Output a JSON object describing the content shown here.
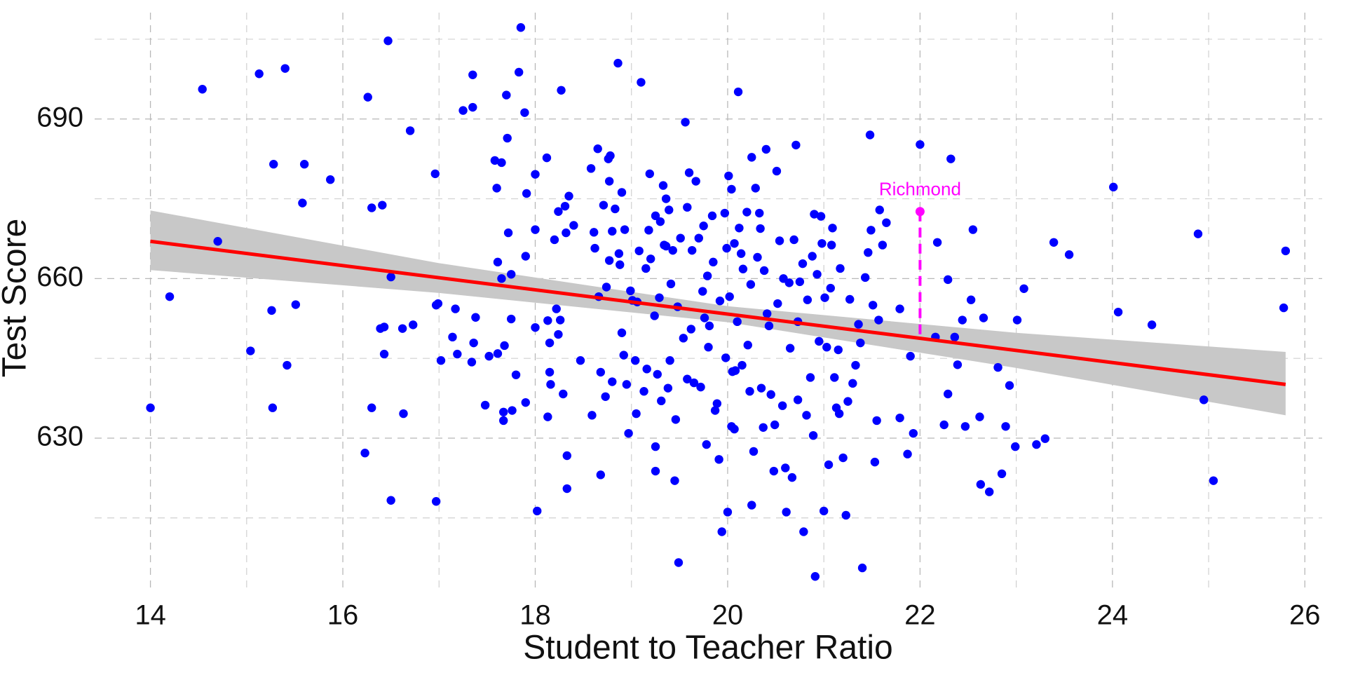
{
  "chart_data": {
    "type": "scatter",
    "x_label": "Student to Teacher Ratio",
    "y_label": "Test Score",
    "color": "#0000ff",
    "xlim": [
      13.42,
      26.18
    ],
    "ylim": [
      601,
      710
    ],
    "xticks": [
      14,
      16,
      18,
      20,
      22,
      24,
      26
    ],
    "yticks": [
      630,
      660,
      690
    ],
    "x_minor_ticks": [
      15,
      17,
      19,
      21,
      23,
      25
    ],
    "y_minor_ticks": [
      615,
      645,
      675,
      705
    ],
    "grid": true,
    "fit": {
      "color": "#ff0000",
      "x": [
        14,
        25.8
      ],
      "y": [
        667.0,
        640.1
      ]
    },
    "band": {
      "color": "#c8c8c8",
      "x": [
        14,
        17,
        20,
        23,
        25.8
      ],
      "lower": [
        661.6,
        657.3,
        651.8,
        643.2,
        634.3
      ],
      "upper": [
        672.8,
        662.9,
        654.8,
        649.8,
        646.2
      ]
    },
    "annotation": {
      "label": "Richmond",
      "color": "#ff00ff",
      "x": 22,
      "y": 672.6,
      "fitted": 648.7
    },
    "x": [
      14.0,
      14.2,
      14.54,
      14.7,
      15.13,
      15.4,
      15.04,
      15.27,
      15.28,
      15.26,
      15.42,
      15.51,
      15.58,
      15.6,
      15.87,
      16.23,
      16.26,
      16.3,
      16.3,
      16.41,
      16.39,
      16.43,
      16.43,
      16.47,
      16.5,
      16.5,
      16.62,
      16.63,
      16.7,
      16.73,
      16.96,
      16.97,
      16.97,
      16.99,
      17.02,
      17.14,
      17.17,
      17.19,
      17.25,
      17.35,
      17.35,
      17.38,
      17.36,
      17.34,
      17.48,
      17.52,
      17.58,
      17.61,
      17.6,
      17.61,
      17.65,
      17.65,
      17.67,
      17.67,
      17.68,
      17.7,
      17.71,
      17.72,
      17.75,
      17.75,
      17.76,
      17.8,
      17.83,
      17.85,
      17.89,
      17.91,
      17.9,
      17.9,
      18.0,
      18.0,
      18.02,
      18.0,
      18.12,
      18.13,
      18.13,
      18.15,
      18.15,
      18.16,
      18.2,
      18.24,
      18.22,
      18.24,
      18.27,
      18.26,
      18.29,
      18.32,
      18.31,
      18.33,
      18.33,
      18.35,
      18.4,
      18.47,
      18.58,
      18.59,
      18.61,
      18.62,
      18.65,
      18.66,
      18.68,
      18.68,
      18.71,
      18.73,
      18.74,
      18.76,
      18.77,
      18.77,
      18.78,
      18.8,
      18.8,
      18.83,
      18.86,
      18.87,
      18.88,
      18.9,
      18.9,
      18.92,
      18.93,
      18.95,
      18.97,
      18.99,
      19.01,
      19.04,
      19.05,
      19.06,
      19.08,
      19.1,
      19.13,
      19.15,
      19.16,
      19.18,
      19.19,
      19.2,
      19.24,
      19.25,
      19.25,
      19.25,
      19.27,
      19.29,
      19.3,
      19.31,
      19.33,
      19.34,
      19.36,
      19.36,
      19.38,
      19.39,
      19.4,
      19.41,
      19.43,
      19.45,
      19.46,
      19.48,
      19.49,
      19.51,
      19.54,
      19.56,
      19.58,
      19.58,
      19.6,
      19.62,
      19.63,
      19.65,
      19.67,
      19.7,
      19.72,
      19.74,
      19.75,
      19.76,
      19.78,
      19.79,
      19.8,
      19.81,
      19.84,
      19.85,
      19.87,
      19.89,
      19.91,
      19.92,
      19.94,
      19.97,
      19.98,
      19.99,
      20.0,
      20.01,
      20.02,
      20.04,
      20.04,
      20.05,
      20.07,
      20.07,
      20.08,
      20.1,
      20.11,
      20.12,
      20.14,
      20.15,
      20.16,
      20.2,
      20.21,
      20.23,
      20.24,
      20.25,
      20.25,
      20.27,
      20.29,
      20.31,
      20.33,
      20.34,
      20.35,
      20.37,
      20.38,
      20.4,
      20.41,
      20.43,
      20.45,
      20.48,
      20.49,
      20.51,
      20.52,
      20.54,
      20.57,
      20.58,
      20.6,
      20.61,
      20.64,
      20.65,
      20.67,
      20.69,
      20.71,
      20.73,
      20.73,
      20.75,
      20.78,
      20.79,
      20.82,
      20.83,
      20.86,
      20.88,
      20.89,
      20.9,
      20.91,
      20.93,
      20.95,
      20.97,
      20.98,
      21.0,
      21.01,
      21.03,
      21.05,
      21.07,
      21.08,
      21.09,
      21.11,
      21.13,
      21.15,
      21.16,
      21.17,
      21.2,
      21.23,
      21.25,
      21.27,
      21.3,
      21.33,
      21.36,
      21.38,
      21.4,
      21.43,
      21.46,
      21.48,
      21.49,
      21.51,
      21.53,
      21.55,
      21.57,
      21.58,
      21.61,
      21.65,
      21.79,
      21.79,
      21.87,
      21.9,
      21.93,
      22.0,
      22.16,
      22.18,
      22.25,
      22.29,
      22.29,
      22.32,
      22.36,
      22.39,
      22.44,
      22.47,
      22.53,
      22.55,
      22.62,
      22.63,
      22.66,
      22.72,
      22.81,
      22.85,
      22.89,
      22.93,
      22.99,
      23.01,
      23.08,
      23.21,
      23.3,
      23.39,
      23.55,
      24.06,
      24.01,
      24.41,
      24.89,
      24.95,
      25.05,
      25.78,
      25.8
    ],
    "y": [
      635.7,
      656.6,
      695.6,
      667.0,
      698.5,
      699.5,
      646.4,
      635.7,
      681.5,
      654.0,
      643.7,
      655.1,
      674.2,
      681.5,
      678.6,
      627.2,
      694.1,
      635.7,
      673.3,
      673.8,
      650.6,
      650.9,
      645.8,
      704.7,
      660.3,
      618.3,
      650.6,
      634.6,
      687.8,
      651.3,
      679.7,
      655.0,
      618.1,
      655.3,
      644.6,
      649.0,
      654.3,
      645.8,
      691.6,
      692.2,
      698.3,
      652.7,
      647.9,
      644.3,
      636.2,
      645.4,
      682.2,
      663.1,
      677.0,
      645.9,
      681.8,
      660.0,
      634.9,
      633.3,
      647.4,
      694.5,
      686.4,
      668.6,
      660.8,
      652.4,
      635.2,
      641.9,
      698.8,
      707.2,
      691.2,
      676.0,
      664.2,
      636.7,
      679.6,
      669.2,
      616.3,
      650.8,
      682.7,
      652.1,
      634.0,
      642.4,
      647.9,
      640.1,
      667.3,
      672.6,
      654.3,
      649.5,
      695.4,
      652.2,
      638.3,
      668.6,
      673.6,
      626.7,
      620.5,
      675.5,
      670.0,
      644.6,
      680.7,
      634.3,
      668.7,
      665.7,
      684.4,
      656.6,
      642.4,
      623.1,
      673.8,
      637.8,
      658.4,
      682.5,
      678.3,
      663.4,
      683.1,
      668.9,
      640.6,
      673.1,
      700.5,
      664.7,
      662.6,
      676.2,
      649.8,
      645.6,
      669.2,
      640.1,
      630.9,
      657.7,
      655.9,
      644.6,
      634.6,
      655.6,
      665.2,
      696.9,
      638.8,
      661.9,
      643.0,
      669.1,
      679.7,
      663.7,
      653.0,
      623.8,
      628.4,
      671.8,
      642.0,
      656.4,
      670.7,
      637.0,
      677.5,
      666.3,
      675.0,
      666.1,
      639.4,
      672.9,
      644.6,
      659.0,
      665.3,
      622.0,
      633.5,
      654.7,
      606.6,
      667.6,
      648.8,
      689.4,
      641.1,
      673.4,
      679.9,
      650.5,
      665.3,
      640.4,
      678.3,
      667.6,
      639.6,
      657.6,
      669.9,
      652.6,
      628.8,
      660.5,
      647.1,
      651.1,
      671.8,
      663.1,
      635.2,
      636.5,
      626.0,
      655.8,
      612.4,
      672.3,
      645.1,
      665.7,
      616.1,
      679.3,
      656.6,
      676.8,
      632.2,
      642.5,
      666.6,
      631.7,
      642.7,
      651.9,
      695.1,
      669.5,
      664.7,
      643.7,
      661.8,
      672.5,
      647.5,
      638.8,
      658.9,
      682.8,
      617.4,
      627.5,
      677.0,
      664.0,
      672.3,
      669.4,
      639.4,
      632.0,
      661.5,
      684.3,
      653.4,
      651.1,
      638.2,
      623.8,
      632.5,
      680.2,
      655.3,
      667.1,
      636.1,
      660.0,
      624.4,
      616.1,
      659.2,
      646.9,
      622.6,
      667.3,
      685.1,
      651.9,
      637.2,
      659.4,
      662.8,
      612.4,
      634.3,
      656.0,
      641.4,
      664.2,
      630.5,
      672.1,
      604.0,
      660.8,
      648.2,
      671.7,
      666.6,
      616.3,
      656.4,
      647.1,
      625.0,
      658.2,
      666.3,
      669.5,
      641.4,
      635.7,
      646.6,
      634.6,
      661.9,
      626.3,
      615.5,
      636.9,
      656.1,
      640.3,
      643.7,
      651.4,
      647.9,
      605.6,
      660.2,
      664.9,
      687.0,
      669.1,
      655.0,
      625.5,
      633.3,
      652.2,
      672.9,
      666.3,
      670.5,
      654.3,
      633.8,
      627.0,
      645.4,
      630.9,
      685.2,
      649.0,
      666.8,
      632.5,
      659.8,
      638.3,
      682.5,
      649.0,
      643.8,
      652.2,
      632.2,
      656.0,
      669.2,
      634.0,
      621.3,
      652.6,
      619.9,
      643.3,
      623.3,
      632.2,
      639.9,
      628.4,
      652.2,
      658.1,
      628.8,
      629.9,
      666.8,
      664.5,
      653.7,
      677.2,
      651.3,
      668.4,
      637.2,
      622.0,
      654.5,
      665.2
    ]
  }
}
